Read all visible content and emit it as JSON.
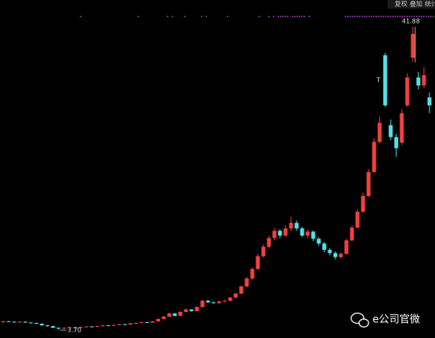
{
  "toolbar": {
    "buttons": [
      "复权",
      "叠加",
      "统计"
    ]
  },
  "chart_data": {
    "type": "candlestick",
    "up_color": "#f0413f",
    "down_color": "#54e1e8",
    "open": [
      4.7,
      4.8,
      4.75,
      4.7,
      4.75,
      4.65,
      4.6,
      4.5,
      4.3,
      4.2,
      4.0,
      3.9,
      4.0,
      4.05,
      4.0,
      4.1,
      4.15,
      4.1,
      4.2,
      4.3,
      4.25,
      4.35,
      4.45,
      4.4,
      4.55,
      4.6,
      4.7,
      4.65,
      4.8,
      5.1,
      5.4,
      5.8,
      5.5,
      6.0,
      6.3,
      6.1,
      6.6,
      7.4,
      7.2,
      7.1,
      7.3,
      7.4,
      7.8,
      8.3,
      9.2,
      10.2,
      11.4,
      13.0,
      14.2,
      15.3,
      16.2,
      15.6,
      16.5,
      17.2,
      16.5,
      15.6,
      16.1,
      15.2,
      14.6,
      13.8,
      13.4,
      12.9,
      13.3,
      15.0,
      16.6,
      18.6,
      20.6,
      23.6,
      27.4,
      38.3,
      29.5,
      28.0,
      27.3,
      32.0,
      38.0,
      35.5,
      34.5,
      33.0
    ],
    "high": [
      4.85,
      4.85,
      4.8,
      4.8,
      4.8,
      4.7,
      4.65,
      4.55,
      4.35,
      4.25,
      4.05,
      4.05,
      4.1,
      4.1,
      4.15,
      4.2,
      4.2,
      4.25,
      4.35,
      4.35,
      4.4,
      4.5,
      4.5,
      4.6,
      4.65,
      4.75,
      4.75,
      4.85,
      5.15,
      5.5,
      5.9,
      5.85,
      6.1,
      6.4,
      6.35,
      6.7,
      7.5,
      7.5,
      7.3,
      7.4,
      7.5,
      7.9,
      8.4,
      9.3,
      10.4,
      11.6,
      13.3,
      14.5,
      15.6,
      16.6,
      16.4,
      16.9,
      18.0,
      17.5,
      16.7,
      16.4,
      16.2,
      15.4,
      14.8,
      14.0,
      13.6,
      13.5,
      15.2,
      16.9,
      18.9,
      21.0,
      24.0,
      27.9,
      30.6,
      38.6,
      30.2,
      28.4,
      31.5,
      36.0,
      41.88,
      36.2,
      36.8,
      33.6
    ],
    "low": [
      4.65,
      4.7,
      4.65,
      4.65,
      4.6,
      4.55,
      4.45,
      4.25,
      4.1,
      3.95,
      3.7,
      3.85,
      3.95,
      3.95,
      3.95,
      4.05,
      4.05,
      4.05,
      4.15,
      4.2,
      4.2,
      4.3,
      4.35,
      4.35,
      4.5,
      4.55,
      4.6,
      4.6,
      4.75,
      5.05,
      5.35,
      5.45,
      5.45,
      5.9,
      6.0,
      6.05,
      6.55,
      7.1,
      7.0,
      7.0,
      7.2,
      7.3,
      7.7,
      8.2,
      9.1,
      10.0,
      11.3,
      12.8,
      14.0,
      15.0,
      15.3,
      15.4,
      16.2,
      16.2,
      15.4,
      15.3,
      14.9,
      14.3,
      13.5,
      13.1,
      12.6,
      12.7,
      13.2,
      14.9,
      16.5,
      18.5,
      20.4,
      23.5,
      27.2,
      31.8,
      27.6,
      25.5,
      27.0,
      31.8,
      37.5,
      34.0,
      34.2,
      31.0
    ],
    "close": [
      4.8,
      4.75,
      4.7,
      4.75,
      4.65,
      4.6,
      4.5,
      4.3,
      4.2,
      4.0,
      3.9,
      4.0,
      4.05,
      4.0,
      4.1,
      4.15,
      4.1,
      4.2,
      4.3,
      4.25,
      4.35,
      4.45,
      4.4,
      4.55,
      4.6,
      4.7,
      4.65,
      4.8,
      5.1,
      5.4,
      5.8,
      5.5,
      6.0,
      6.3,
      6.1,
      6.6,
      7.4,
      7.2,
      7.1,
      7.3,
      7.4,
      7.8,
      8.3,
      9.2,
      10.2,
      11.4,
      13.0,
      14.2,
      15.3,
      16.2,
      15.6,
      16.5,
      17.2,
      16.5,
      15.6,
      16.1,
      15.2,
      14.6,
      13.8,
      13.4,
      12.9,
      13.3,
      15.0,
      16.6,
      18.6,
      20.6,
      23.6,
      27.4,
      29.8,
      32.0,
      28.0,
      26.6,
      31.0,
      35.5,
      41.0,
      34.5,
      35.8,
      32.0
    ],
    "high_label": 41.88,
    "low_label": {
      "value": 3.7,
      "label": "3.70"
    },
    "marker": "T"
  },
  "watermark": "e公司官微"
}
